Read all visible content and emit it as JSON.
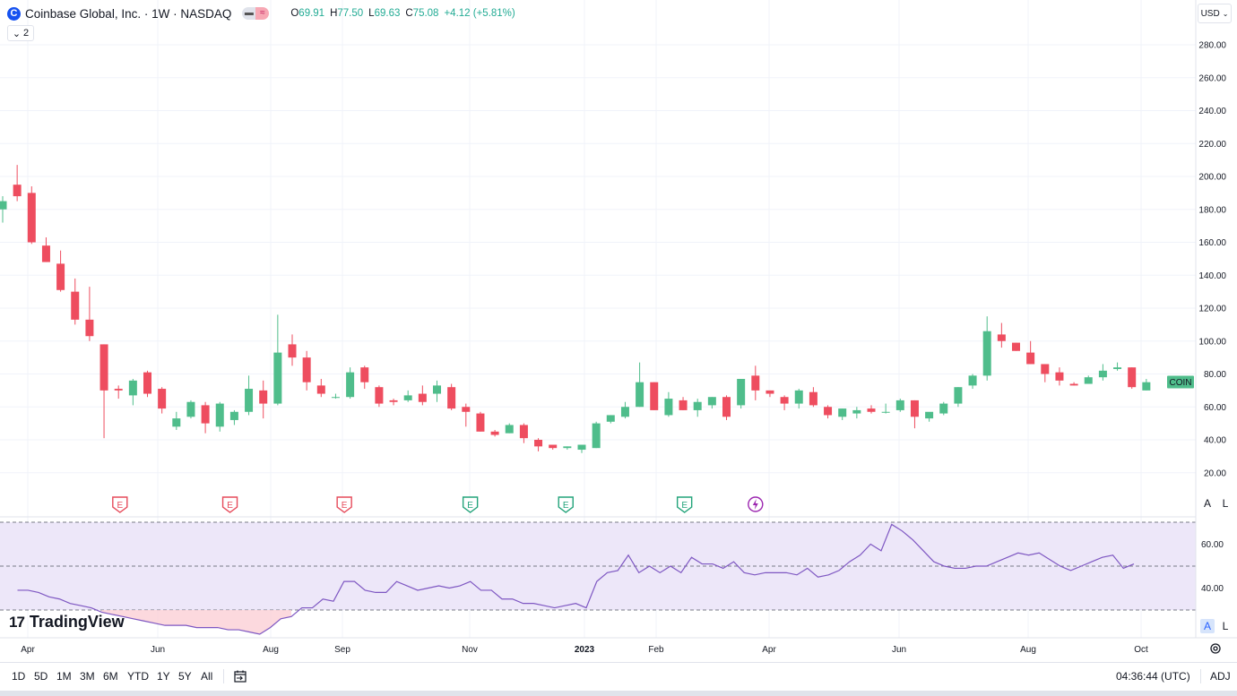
{
  "header": {
    "logo_letter": "C",
    "title": "Coinbase Global, Inc. · 1W · NASDAQ",
    "pill_icons": [
      "minus-icon",
      "wave-icon"
    ],
    "pill_glyphs": [
      "▬",
      "≈"
    ],
    "ohlc": {
      "o_label": "O",
      "o": "69.91",
      "h_label": "H",
      "h": "77.50",
      "l_label": "L",
      "l": "69.63",
      "c_label": "C",
      "c": "75.08",
      "change": "+4.12 (+5.81%)"
    },
    "indicator_count": "2",
    "currency": "USD"
  },
  "colors": {
    "up": "#4fbd8b",
    "down": "#ee4d5f",
    "rsi_line": "#7e57c2",
    "rsi_band": "#ede7f9",
    "earnings_past": "#e64a5a",
    "earnings_future": "#22a37a",
    "event_dividend": "#9c27b0"
  },
  "price_label": "COIN",
  "scale_buttons": {
    "auto": "A",
    "log": "L"
  },
  "watermark": "TradingView",
  "bottom": {
    "ranges": [
      "1D",
      "5D",
      "1M",
      "3M",
      "6M",
      "YTD",
      "1Y",
      "5Y",
      "All"
    ],
    "time": "04:36:44 (UTC)",
    "adj": "ADJ"
  },
  "chart_data": {
    "type": "candlestick",
    "title": "Coinbase Global, Inc. · 1W · NASDAQ",
    "interval": "1W",
    "price_axis": {
      "min": 0,
      "max": 300,
      "ticks": [
        20,
        40,
        60,
        80,
        100,
        120,
        140,
        160,
        180,
        200,
        220,
        240,
        260,
        280
      ]
    },
    "x_labels": [
      "Apr",
      "Jun",
      "Aug",
      "Sep",
      "Nov",
      "2023",
      "Feb",
      "Apr",
      "Jun",
      "Aug",
      "Oct"
    ],
    "last_price": 75.08,
    "candles": [
      [
        180,
        188,
        172,
        185
      ],
      [
        195,
        207,
        185,
        188
      ],
      [
        190,
        194,
        159,
        160
      ],
      [
        158,
        163,
        148,
        148
      ],
      [
        147,
        155,
        130,
        131
      ],
      [
        130,
        138,
        110,
        113
      ],
      [
        113,
        133,
        100,
        103
      ],
      [
        98,
        98,
        41,
        70
      ],
      [
        71,
        73,
        65,
        70
      ],
      [
        67,
        77,
        61,
        76
      ],
      [
        81,
        82,
        66,
        68
      ],
      [
        71,
        72,
        56,
        59
      ],
      [
        48,
        57,
        46,
        53
      ],
      [
        54,
        64,
        53,
        63
      ],
      [
        61,
        63,
        44,
        50
      ],
      [
        48,
        63,
        45,
        62
      ],
      [
        52,
        58,
        49,
        57
      ],
      [
        57,
        79,
        55,
        71
      ],
      [
        70,
        76,
        53,
        62
      ],
      [
        62,
        116,
        61,
        93
      ],
      [
        98,
        104,
        85,
        90
      ],
      [
        90,
        94,
        70,
        75
      ],
      [
        73,
        77,
        66,
        68
      ],
      [
        66,
        68,
        65,
        66
      ],
      [
        66,
        84,
        65,
        81
      ],
      [
        84,
        85,
        71,
        75
      ],
      [
        72,
        73,
        60,
        62
      ],
      [
        64,
        65,
        61,
        63
      ],
      [
        64,
        70,
        63,
        67
      ],
      [
        68,
        73,
        61,
        63
      ],
      [
        68,
        76,
        63,
        73
      ],
      [
        72,
        74,
        58,
        59
      ],
      [
        60,
        62,
        48,
        57
      ],
      [
        56,
        57,
        45,
        45
      ],
      [
        45,
        46,
        42,
        43
      ],
      [
        44,
        50,
        44,
        49
      ],
      [
        49,
        50,
        38,
        41
      ],
      [
        40,
        41,
        33,
        36
      ],
      [
        37,
        37,
        34,
        35
      ],
      [
        35,
        36,
        34,
        36
      ],
      [
        34,
        36,
        32,
        37
      ],
      [
        35,
        51,
        35,
        50
      ],
      [
        51,
        55,
        50,
        55
      ],
      [
        54,
        63,
        53,
        60
      ],
      [
        60,
        87,
        60,
        75
      ],
      [
        75,
        75,
        58,
        58
      ],
      [
        55,
        69,
        54,
        65
      ],
      [
        64,
        66,
        58,
        58
      ],
      [
        58,
        65,
        54,
        63
      ],
      [
        61,
        66,
        59,
        66
      ],
      [
        66,
        67,
        52,
        54
      ],
      [
        61,
        77,
        59,
        77
      ],
      [
        79,
        85,
        64,
        70
      ],
      [
        70,
        70,
        66,
        68
      ],
      [
        66,
        67,
        58,
        62
      ],
      [
        62,
        71,
        59,
        70
      ],
      [
        69,
        72,
        60,
        61
      ],
      [
        60,
        61,
        53,
        55
      ],
      [
        54,
        59,
        52,
        59
      ],
      [
        56,
        60,
        53,
        58
      ],
      [
        59,
        61,
        56,
        57
      ],
      [
        57,
        62,
        56,
        57
      ],
      [
        58,
        65,
        57,
        64
      ],
      [
        64,
        64,
        47,
        54
      ],
      [
        53,
        56,
        51,
        57
      ],
      [
        56,
        63,
        55,
        62
      ],
      [
        62,
        72,
        60,
        72
      ],
      [
        73,
        80,
        71,
        79
      ],
      [
        79,
        115,
        76,
        106
      ],
      [
        104,
        111,
        96,
        100
      ],
      [
        99,
        99,
        94,
        94
      ],
      [
        93,
        100,
        86,
        86
      ],
      [
        86,
        86,
        75,
        80
      ],
      [
        81,
        84,
        73,
        76
      ],
      [
        74,
        75,
        73,
        73
      ],
      [
        74,
        79,
        74,
        78
      ],
      [
        78,
        86,
        76,
        82
      ],
      [
        83,
        87,
        82,
        84
      ],
      [
        84,
        84,
        71,
        72
      ],
      [
        70,
        77,
        70,
        75
      ]
    ],
    "events": {
      "earnings_reported": [
        8.1,
        15.7,
        23.6
      ],
      "earnings_upcoming": [
        32.3,
        38.9,
        47.1
      ],
      "other_event": [
        52.0
      ]
    },
    "rsi": {
      "axis_ticks": [
        40,
        60
      ],
      "levels": {
        "upper": 70,
        "middle": 50,
        "lower": 30
      },
      "values": [
        null,
        null,
        39,
        39,
        38,
        36,
        35,
        33,
        32,
        31,
        29,
        28,
        27,
        26,
        25,
        24,
        23,
        23,
        23,
        22,
        22,
        22,
        21,
        21,
        20,
        19,
        22,
        26,
        27,
        31,
        31,
        35,
        34,
        43,
        43,
        39,
        38,
        38,
        43,
        41,
        39,
        40,
        41,
        40,
        41,
        43,
        39,
        39,
        35,
        35,
        33,
        33,
        32,
        31,
        32,
        33,
        31,
        43,
        47,
        48,
        55,
        47,
        50,
        47,
        50,
        47,
        54,
        51,
        51,
        49,
        52,
        47,
        46,
        47,
        47,
        47,
        46,
        49,
        45,
        46,
        48,
        52,
        55,
        60,
        57,
        69,
        66,
        62,
        57,
        52,
        50,
        49,
        49,
        50,
        50,
        52,
        54,
        56,
        55,
        56,
        53,
        50,
        48,
        50,
        52,
        54,
        55,
        49,
        51
      ]
    }
  }
}
